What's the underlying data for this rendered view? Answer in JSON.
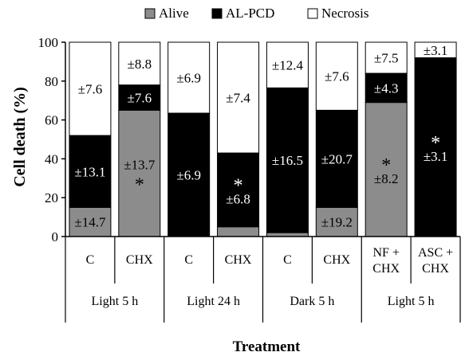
{
  "chart_data": {
    "type": "bar",
    "stacked": true,
    "ylabel": "Cell death (%)",
    "xlabel": "Treatment",
    "ylim": [
      0,
      100
    ],
    "yticks": [
      0,
      20,
      40,
      60,
      80,
      100
    ],
    "legend_position": "top",
    "legend": [
      {
        "name": "Alive",
        "color": "#8c8c8c"
      },
      {
        "name": "AL-PCD",
        "color": "#000000"
      },
      {
        "name": "Necrosis",
        "color": "#ffffff"
      }
    ],
    "categories": [
      {
        "label": [
          "C"
        ],
        "group": "Light 5 h"
      },
      {
        "label": [
          "CHX"
        ],
        "group": "Light 5 h"
      },
      {
        "label": [
          "C"
        ],
        "group": "Light 24 h"
      },
      {
        "label": [
          "CHX"
        ],
        "group": "Light 24 h"
      },
      {
        "label": [
          "C"
        ],
        "group": "Dark 5 h"
      },
      {
        "label": [
          "CHX"
        ],
        "group": "Dark 5 h"
      },
      {
        "label": [
          "NF +",
          "CHX"
        ],
        "group": "Light 5 h"
      },
      {
        "label": [
          "ASC +",
          "CHX"
        ],
        "group": "Light 5 h"
      }
    ],
    "groups": [
      "Light 5 h",
      "Light 24 h",
      "Dark 5 h",
      "Light 5 h"
    ],
    "series": [
      {
        "name": "Alive",
        "values": [
          15,
          65,
          0,
          5,
          2,
          15,
          69,
          0
        ]
      },
      {
        "name": "AL-PCD",
        "values": [
          37,
          13,
          63.5,
          38,
          74.5,
          50,
          15,
          92
        ]
      },
      {
        "name": "Necrosis",
        "values": [
          48,
          22,
          36.5,
          57,
          23.5,
          35,
          16,
          8
        ]
      }
    ],
    "annotations": [
      {
        "bar": 0,
        "segment": "Necrosis",
        "text": "±7.6"
      },
      {
        "bar": 0,
        "segment": "AL-PCD",
        "text": "±13.1"
      },
      {
        "bar": 0,
        "segment": "Alive",
        "text": "±14.7"
      },
      {
        "bar": 1,
        "segment": "Necrosis",
        "text": "±8.8"
      },
      {
        "bar": 1,
        "segment": "AL-PCD",
        "text": "±7.6"
      },
      {
        "bar": 1,
        "segment": "Alive",
        "text": "±13.7"
      },
      {
        "bar": 1,
        "segment": "Alive",
        "text": "*"
      },
      {
        "bar": 2,
        "segment": "Necrosis",
        "text": "±6.9"
      },
      {
        "bar": 2,
        "segment": "AL-PCD",
        "text": "±6.9"
      },
      {
        "bar": 3,
        "segment": "Necrosis",
        "text": "±7.4"
      },
      {
        "bar": 3,
        "segment": "AL-PCD",
        "text": "*"
      },
      {
        "bar": 3,
        "segment": "AL-PCD",
        "text": "±6.8"
      },
      {
        "bar": 4,
        "segment": "Necrosis",
        "text": "±12.4"
      },
      {
        "bar": 4,
        "segment": "AL-PCD",
        "text": "±16.5"
      },
      {
        "bar": 5,
        "segment": "Necrosis",
        "text": "±7.6"
      },
      {
        "bar": 5,
        "segment": "AL-PCD",
        "text": "±20.7"
      },
      {
        "bar": 5,
        "segment": "Alive",
        "text": "±19.2"
      },
      {
        "bar": 6,
        "segment": "Necrosis",
        "text": "±7.5"
      },
      {
        "bar": 6,
        "segment": "AL-PCD",
        "text": "±4.3"
      },
      {
        "bar": 6,
        "segment": "Alive",
        "text": "*"
      },
      {
        "bar": 6,
        "segment": "Alive",
        "text": "±8.2"
      },
      {
        "bar": 7,
        "segment": "Necrosis",
        "text": "±3.1"
      },
      {
        "bar": 7,
        "segment": "AL-PCD",
        "text": "*"
      },
      {
        "bar": 7,
        "segment": "AL-PCD",
        "text": "±3.1"
      }
    ]
  }
}
